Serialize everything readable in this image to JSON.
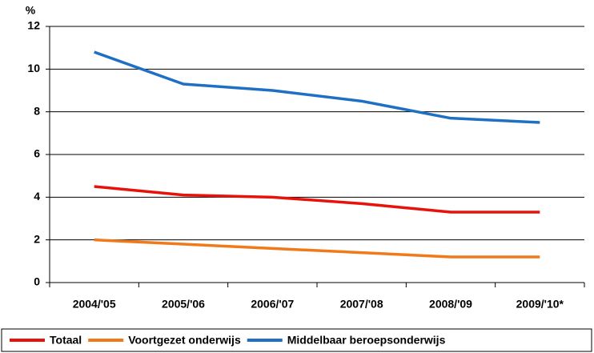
{
  "chart_data": {
    "type": "line",
    "y_label": "%",
    "categories": [
      "2004/'05",
      "2005/'06",
      "2006/'07",
      "2007/'08",
      "2008/'09",
      "2009/'10*"
    ],
    "series": [
      {
        "name": "Totaal",
        "color": "#e8120c",
        "values": [
          4.5,
          4.1,
          4.0,
          3.7,
          3.3,
          3.3
        ]
      },
      {
        "name": "Voortgezet onderwijs",
        "color": "#f07a1a",
        "values": [
          2.0,
          1.8,
          1.6,
          1.4,
          1.2,
          1.2
        ]
      },
      {
        "name": "Middelbaar beroepsonderwijs",
        "color": "#1f6fc4",
        "values": [
          10.8,
          9.3,
          9.0,
          8.5,
          7.7,
          7.5
        ]
      }
    ],
    "ylim": [
      0,
      12
    ],
    "yticks": [
      0,
      2,
      4,
      6,
      8,
      10,
      12
    ],
    "grid": true,
    "legend": "bottom"
  }
}
